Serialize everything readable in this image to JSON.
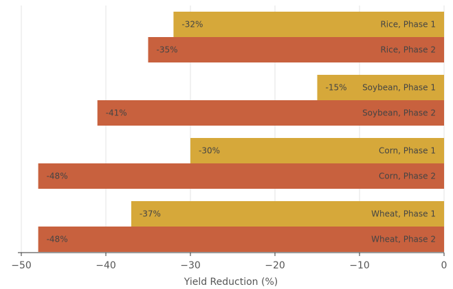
{
  "chart_data": {
    "type": "bar",
    "orientation": "horizontal",
    "title": "",
    "xlabel": "Yield Reduction (%)",
    "ylabel": "",
    "xlim": [
      -50,
      0
    ],
    "xticks": [
      -50,
      -40,
      -30,
      -20,
      -10,
      0
    ],
    "xtick_labels": [
      "−50",
      "−40",
      "−30",
      "−20",
      "−10",
      "0"
    ],
    "grid": "vertical",
    "categories": [
      "Rice, Phase 1",
      "Rice, Phase 2",
      "Soybean, Phase 1",
      "Soybean, Phase 2",
      "Corn, Phase 1",
      "Corn, Phase 2",
      "Wheat, Phase 1",
      "Wheat, Phase 2"
    ],
    "values": [
      -32,
      -35,
      -15,
      -41,
      -30,
      -48,
      -37,
      -48
    ],
    "value_labels": [
      "-32%",
      "-35%",
      "-15%",
      "-41%",
      "-30%",
      "-48%",
      "-37%",
      "-48%"
    ],
    "phases": [
      1,
      2,
      1,
      2,
      1,
      2,
      1,
      2
    ],
    "colors": {
      "phase1": "#D6A83A",
      "phase2": "#C8613E"
    }
  }
}
